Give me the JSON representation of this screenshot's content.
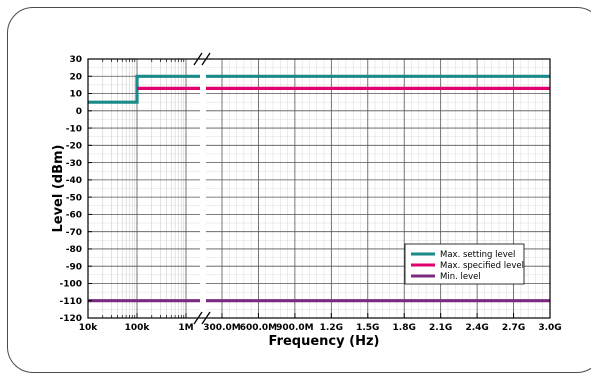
{
  "chart_data": {
    "type": "line",
    "xlabel": "Frequency (Hz)",
    "ylabel": "Level (dBm)",
    "ylim": [
      -120,
      30
    ],
    "y_ticks": [
      "30",
      "20",
      "10",
      "0",
      "-10",
      "-20",
      "-30",
      "-40",
      "-50",
      "-60",
      "-70",
      "-80",
      "-90",
      "-100",
      "-110",
      "-120"
    ],
    "x_ticks_log": [
      "10k",
      "100k",
      "1M"
    ],
    "x_ticks_lin": [
      "300.0M",
      "600.0M",
      "900.0M",
      "1.2G",
      "1.5G",
      "1.8G",
      "2.1G",
      "2.4G",
      "2.7G",
      "3.0G"
    ],
    "x_axis": "broken axis: logarithmic 10k–1M, then linear 300M–3.0G",
    "grid": true,
    "legend_position": "bottom-right",
    "series": [
      {
        "name": "Max. setting level",
        "color": "#1a8a8a",
        "points": [
          [
            "10k",
            5
          ],
          [
            "100k",
            5
          ],
          [
            "100k",
            20
          ],
          [
            "3.0G",
            20
          ]
        ]
      },
      {
        "name": "Max. specified level",
        "color": "#e0006f",
        "points": [
          [
            "100k",
            13
          ],
          [
            "3.0G",
            13
          ]
        ]
      },
      {
        "name": "Min. level",
        "color": "#7a2a80",
        "points": [
          [
            "10k",
            -110
          ],
          [
            "3.0G",
            -110
          ]
        ]
      }
    ]
  }
}
